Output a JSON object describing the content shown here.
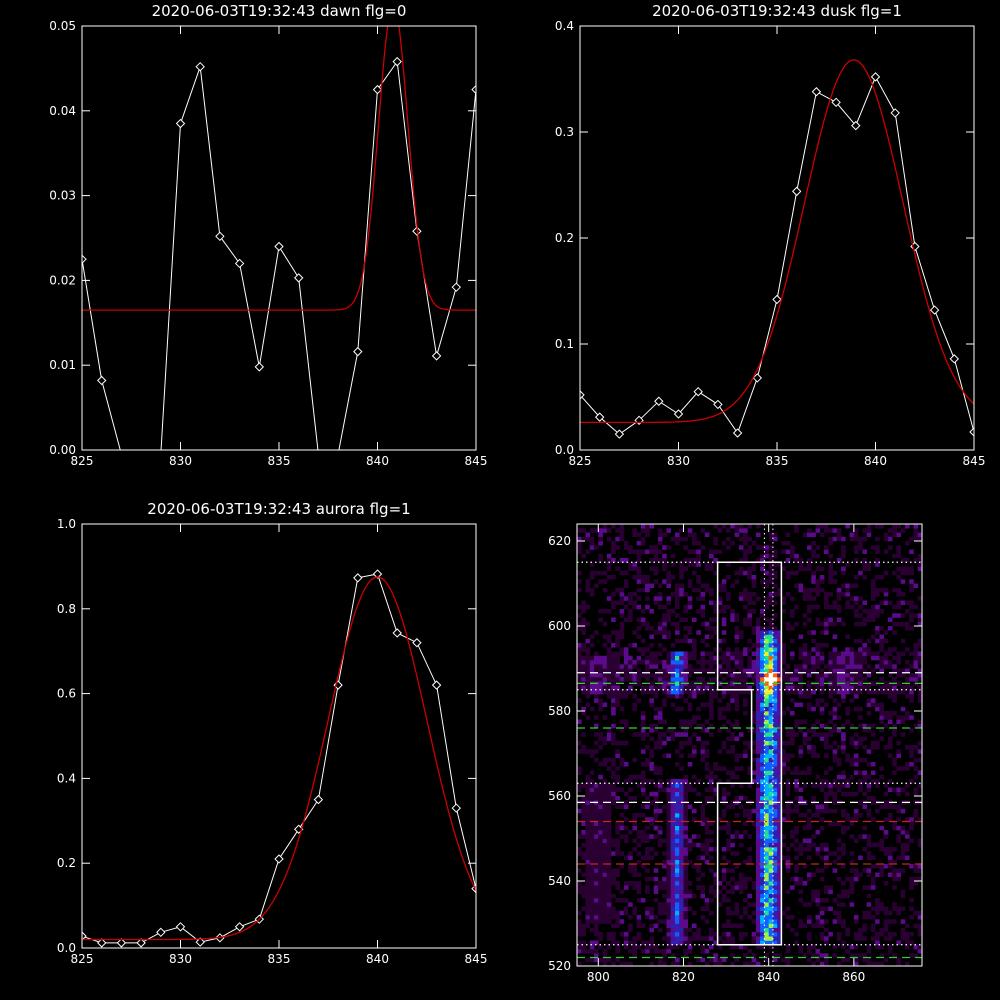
{
  "chart_data": [
    {
      "type": "line",
      "title": "2020-06-03T19:32:43 dawn flg=0",
      "xlim": [
        825,
        845
      ],
      "ylim": [
        0,
        0.05
      ],
      "xticks": [
        "825",
        "830",
        "835",
        "840",
        "845"
      ],
      "yticks": [
        "0.00",
        "0.01",
        "0.02",
        "0.03",
        "0.04",
        "0.05"
      ],
      "series": [
        {
          "kind": "observed",
          "color": "#ffffff",
          "x": [
            825,
            826,
            827,
            828,
            829,
            830,
            831,
            832,
            833,
            834,
            835,
            836,
            837,
            838,
            839,
            840,
            841,
            842,
            843,
            844,
            845
          ],
          "y": [
            0.0225,
            0.0082,
            -0.0005,
            -0.0005,
            -0.0005,
            0.0385,
            0.0452,
            0.0252,
            0.022,
            0.0098,
            0.024,
            0.0203,
            -0.0005,
            -0.0005,
            0.0116,
            0.0425,
            0.0458,
            0.0258,
            0.0111,
            0.0192,
            0.0425
          ]
        },
        {
          "kind": "fit",
          "color": "#cc0000",
          "gauss": {
            "base": 0.0165,
            "amp": 0.036,
            "center": 840.8,
            "sigma": 0.75
          }
        }
      ]
    },
    {
      "type": "line",
      "title": "2020-06-03T19:32:43 dusk flg=1",
      "xlim": [
        825,
        845
      ],
      "ylim": [
        0,
        0.4
      ],
      "xticks": [
        "825",
        "830",
        "835",
        "840",
        "845"
      ],
      "yticks": [
        "0.0",
        "0.1",
        "0.2",
        "0.3",
        "0.4"
      ],
      "series": [
        {
          "kind": "observed",
          "color": "#ffffff",
          "x": [
            825,
            826,
            827,
            828,
            829,
            830,
            831,
            832,
            833,
            834,
            835,
            836,
            837,
            838,
            839,
            840,
            841,
            842,
            843,
            844,
            845
          ],
          "y": [
            0.052,
            0.031,
            0.015,
            0.028,
            0.046,
            0.034,
            0.055,
            0.043,
            0.016,
            0.068,
            0.142,
            0.244,
            0.338,
            0.328,
            0.306,
            0.352,
            0.318,
            0.192,
            0.132,
            0.086,
            0.017
          ]
        },
        {
          "kind": "fit",
          "color": "#cc0000",
          "gauss": {
            "base": 0.026,
            "amp": 0.342,
            "center": 838.9,
            "sigma": 2.5
          }
        }
      ]
    },
    {
      "type": "line",
      "title": "2020-06-03T19:32:43 aurora flg=1",
      "xlim": [
        825,
        845
      ],
      "ylim": [
        0,
        1.0
      ],
      "xticks": [
        "825",
        "830",
        "835",
        "840",
        "845"
      ],
      "yticks": [
        "0.0",
        "0.2",
        "0.4",
        "0.6",
        "0.8",
        "1.0"
      ],
      "series": [
        {
          "kind": "observed",
          "color": "#ffffff",
          "x": [
            825,
            826,
            827,
            828,
            829,
            830,
            831,
            832,
            833,
            834,
            835,
            836,
            837,
            838,
            839,
            840,
            841,
            842,
            843,
            844,
            845
          ],
          "y": [
            0.028,
            0.012,
            0.012,
            0.012,
            0.037,
            0.05,
            0.014,
            0.024,
            0.05,
            0.068,
            0.21,
            0.28,
            0.35,
            0.62,
            0.873,
            0.882,
            0.743,
            0.72,
            0.62,
            0.33,
            0.14
          ]
        },
        {
          "kind": "fit",
          "color": "#cc0000",
          "gauss": {
            "base": 0.02,
            "amp": 0.855,
            "center": 840.0,
            "sigma": 2.5
          }
        }
      ]
    },
    {
      "type": "heatmap",
      "title": "",
      "xlim": [
        795,
        876
      ],
      "ylim": [
        520,
        624
      ],
      "xticks": [
        "800",
        "820",
        "840",
        "860"
      ],
      "yticks": [
        "520",
        "540",
        "560",
        "580",
        "600",
        "620"
      ],
      "colormap": [
        "#000000",
        "#2a0033",
        "#5a0a8a",
        "#3020b0",
        "#1060ff",
        "#00b0ff",
        "#20e090",
        "#a0f040",
        "#f0f020",
        "#ff6000",
        "#ff0000",
        "#ffffff"
      ],
      "bands": [
        {
          "x_center": 840.0,
          "x_half": 3.5,
          "y_range": [
            525,
            598
          ],
          "strength": 0.62
        },
        {
          "x_center": 818.5,
          "x_half": 2.5,
          "y_range": [
            525,
            563
          ],
          "strength": 0.38
        },
        {
          "x_center": 818.5,
          "x_half": 2.5,
          "y_range": [
            584,
            593
          ],
          "strength": 0.5
        },
        {
          "x_center": 840.0,
          "x_half": 2.5,
          "y_range": [
            584,
            594
          ],
          "strength": 0.9
        },
        {
          "x_center": 858.0,
          "x_half": 4.5,
          "y_range": [
            584,
            593
          ],
          "strength": 0.22
        },
        {
          "x_center": 800.0,
          "x_half": 5.0,
          "y_range": [
            584,
            592
          ],
          "strength": 0.2
        },
        {
          "x_center": 800.0,
          "x_half": 4.0,
          "y_range": [
            530,
            562
          ],
          "strength": 0.14
        }
      ],
      "hotspot": {
        "x": 840.5,
        "y": 587.5
      },
      "region_outline": {
        "color": "#ffffff",
        "x": [
          828,
          828,
          836,
          836,
          828,
          828,
          843,
          843,
          828
        ],
        "y": [
          525,
          563,
          563,
          585,
          585,
          615,
          615,
          525,
          525
        ]
      },
      "hlines": [
        {
          "y": 615,
          "style": "dotted",
          "color": "#ffffff"
        },
        {
          "y": 589,
          "style": "dashed",
          "color": "#ffffff"
        },
        {
          "y": 586.5,
          "style": "dashed",
          "color": "#33cc33"
        },
        {
          "y": 585,
          "style": "dotted",
          "color": "#ffffff"
        },
        {
          "y": 576,
          "style": "dashed",
          "color": "#33cc33"
        },
        {
          "y": 563,
          "style": "dotted",
          "color": "#ffffff"
        },
        {
          "y": 558.5,
          "style": "dashed",
          "color": "#ffffff"
        },
        {
          "y": 554,
          "style": "dashed",
          "color": "#cc2222"
        },
        {
          "y": 544,
          "style": "dashed",
          "color": "#cc2222"
        },
        {
          "y": 525,
          "style": "dotted",
          "color": "#ffffff"
        },
        {
          "y": 522,
          "style": "dashed",
          "color": "#33cc33"
        }
      ],
      "vlines": [
        {
          "x": 839.0,
          "style": "dotted",
          "color": "#ffffff"
        },
        {
          "x": 841.0,
          "style": "dotted",
          "color": "#ffffff"
        }
      ]
    }
  ]
}
